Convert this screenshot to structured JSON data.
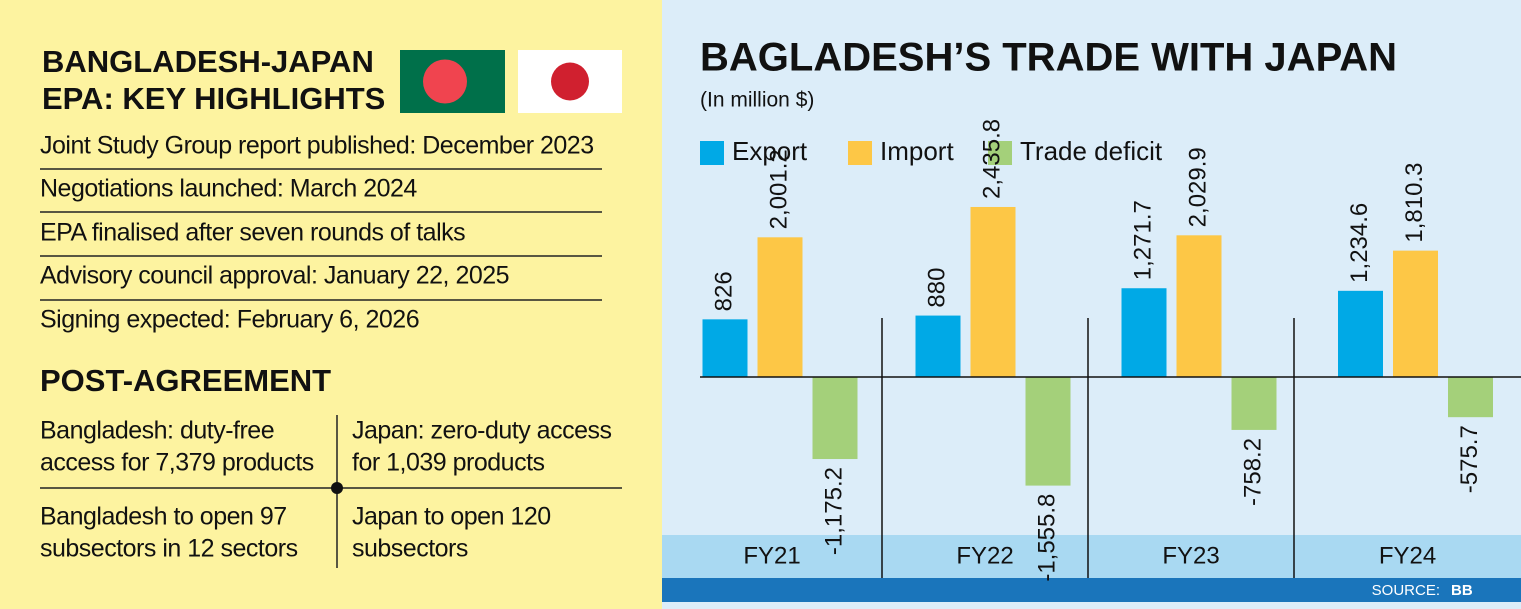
{
  "highlights": {
    "title": [
      "BANGLADESH-JAPAN",
      "EPA: KEY HIGHLIGHTS"
    ],
    "items": [
      "Joint Study Group report published: December 2023",
      "Negotiations launched: March 2024",
      "EPA finalised after seven rounds of talks",
      "Advisory council approval: January 22, 2025",
      "Signing expected: February 6, 2026"
    ]
  },
  "post_agreement": {
    "title": "POST-AGREEMENT",
    "cells": [
      [
        "Bangladesh: duty-free",
        "access for 7,379 products"
      ],
      [
        "Japan: zero-duty access",
        "for 1,039 products"
      ],
      [
        "Bangladesh to open 97",
        "subsectors in 12 sectors"
      ],
      [
        "Japan to open 120",
        "subsectors"
      ]
    ]
  },
  "chart_data": {
    "type": "bar",
    "title": "BAGLADESH’S TRADE WITH JAPAN",
    "subtitle": "(In million $)",
    "categories": [
      "FY21",
      "FY22",
      "FY23",
      "FY24"
    ],
    "series": [
      {
        "name": "Export",
        "color": "#00a9e6",
        "values": [
          826,
          880,
          1271.7,
          1234.6
        ],
        "value_labels": [
          "826",
          "880",
          "1,271.7",
          "1,234.6"
        ]
      },
      {
        "name": "Import",
        "color": "#fdc746",
        "values": [
          2001.2,
          2435.8,
          2029.9,
          1810.3
        ],
        "value_labels": [
          "2,001.2",
          "2,435.8",
          "2,029.9",
          "1,810.3"
        ]
      },
      {
        "name": "Trade deficit",
        "color": "#a4d07a",
        "values": [
          -1175.2,
          -1555.8,
          -758.2,
          -575.7
        ],
        "value_labels": [
          "-1,175.2",
          "-1,555.8",
          "-758.2",
          "-575.7"
        ]
      }
    ],
    "source_label": "SOURCE:",
    "source": "BB"
  }
}
